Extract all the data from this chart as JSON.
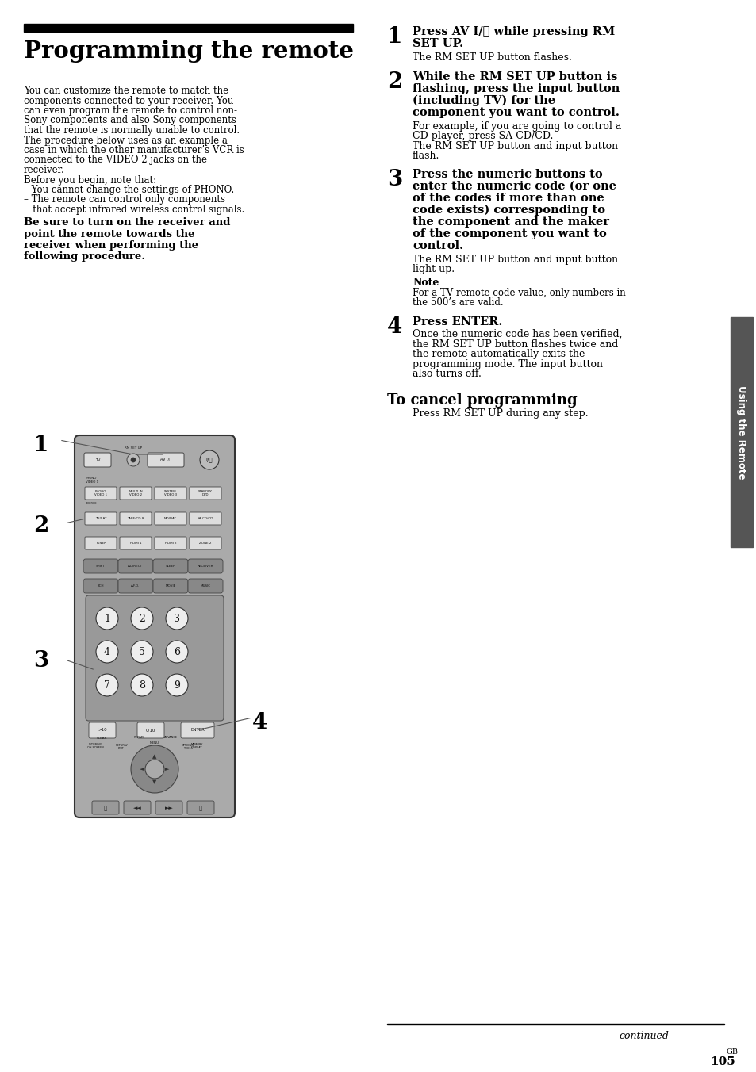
{
  "bg_color": "#ffffff",
  "text_color": "#000000",
  "title_bar_color": "#000000",
  "title": "Programming the remote",
  "intro_lines": [
    "You can customize the remote to match the",
    "components connected to your receiver. You",
    "can even program the remote to control non-",
    "Sony components and also Sony components",
    "that the remote is normally unable to control.",
    "The procedure below uses as an example a",
    "case in which the other manufacturer’s VCR is",
    "connected to the VIDEO 2 jacks on the",
    "receiver.",
    "Before you begin, note that:",
    "– You cannot change the settings of PHONO.",
    "– The remote can control only components",
    "   that accept infrared wireless control signals."
  ],
  "bold_note_lines": [
    "Be sure to turn on the receiver and",
    "point the remote towards the",
    "receiver when performing the",
    "following procedure."
  ],
  "step1_bold_lines": [
    "Press AV I/⏻ while pressing RM",
    "SET UP."
  ],
  "step1_text": "The RM SET UP button flashes.",
  "step2_bold_lines": [
    "While the RM SET UP button is",
    "flashing, press the input button",
    "(including TV) for the",
    "component you want to control."
  ],
  "step2_text_lines": [
    "For example, if you are going to control a",
    "CD player, press SA-CD/CD.",
    "The RM SET UP button and input button",
    "flash."
  ],
  "step3_bold_lines": [
    "Press the numeric buttons to",
    "enter the numeric code (or one",
    "of the codes if more than one",
    "code exists) corresponding to",
    "the component and the maker",
    "of the component you want to",
    "control."
  ],
  "step3_text_lines": [
    "The RM SET UP button and input button",
    "light up."
  ],
  "note_label": "Note",
  "note_text_lines": [
    "For a TV remote code value, only numbers in",
    "the 500’s are valid."
  ],
  "step4_bold": "Press ENTER.",
  "step4_text_lines": [
    "Once the numeric code has been verified,",
    "the RM SET UP button flashes twice and",
    "the remote automatically exits the",
    "programming mode. The input button",
    "also turns off."
  ],
  "cancel_title": "To cancel programming",
  "cancel_text": "Press RM SET UP during any step.",
  "sidebar_text": "Using the Remote",
  "continued_text": "continued",
  "page_num": "105",
  "page_suffix": "GB",
  "sidebar_color": "#555555",
  "remote_body_color": "#aaaaaa",
  "remote_btn_color": "#dddddd",
  "remote_dark_btn": "#888888"
}
